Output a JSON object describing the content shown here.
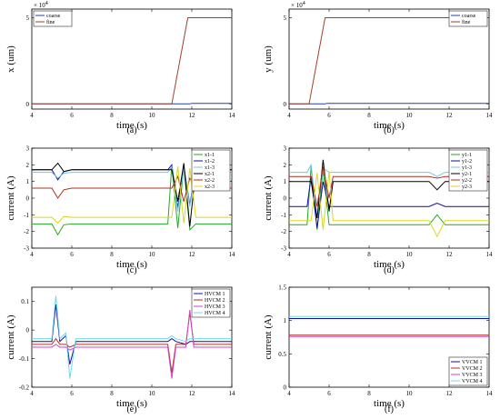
{
  "chart_data": [
    {
      "id": "a",
      "type": "line",
      "panel_label": "(a)",
      "xlabel": "time (s)",
      "ylabel": "x (um)",
      "xlim": [
        4,
        14
      ],
      "ylim": [
        -0.3,
        5.5
      ],
      "xticks": [
        "4",
        "6",
        "8",
        "10",
        "12",
        "14"
      ],
      "yticks": [
        {
          "v": 0,
          "t": "0"
        },
        {
          "v": 5,
          "t": "5"
        }
      ],
      "exponent_label": "× 10",
      "exponent_power": "4",
      "legend_position": "top-left",
      "series": [
        {
          "name": "coarse",
          "color": "#1f3fbf",
          "x": [
            4,
            11.9,
            12.0,
            14
          ],
          "y": [
            0,
            0,
            0.03,
            0.03
          ]
        },
        {
          "name": "fine",
          "color": "#a0402a",
          "x": [
            4,
            11.0,
            11.8,
            14
          ],
          "y": [
            0,
            0,
            5,
            5
          ]
        }
      ]
    },
    {
      "id": "b",
      "type": "line",
      "panel_label": "(b)",
      "xlabel": "time (s)",
      "ylabel": "y (um)",
      "xlim": [
        4,
        14
      ],
      "ylim": [
        -0.3,
        5.5
      ],
      "xticks": [
        "4",
        "6",
        "8",
        "10",
        "12",
        "14"
      ],
      "yticks": [
        {
          "v": 0,
          "t": "0"
        },
        {
          "v": 5,
          "t": "5"
        }
      ],
      "exponent_label": "× 10",
      "exponent_power": "4",
      "legend_position": "top-right",
      "series": [
        {
          "name": "coarse",
          "color": "#1f3fbf",
          "x": [
            4,
            5.8,
            5.9,
            14
          ],
          "y": [
            0,
            0,
            0.03,
            0.03
          ]
        },
        {
          "name": "fine",
          "color": "#a0402a",
          "x": [
            4,
            5.0,
            5.8,
            14
          ],
          "y": [
            0,
            0,
            5,
            5
          ]
        }
      ]
    },
    {
      "id": "c",
      "type": "line",
      "panel_label": "(c)",
      "xlabel": "time (s)",
      "ylabel": "current (A)",
      "xlim": [
        4,
        14
      ],
      "ylim": [
        -3,
        3
      ],
      "xticks": [
        "4",
        "6",
        "8",
        "10",
        "12",
        "14"
      ],
      "yticks": [
        {
          "v": -3,
          "t": "-3"
        },
        {
          "v": -2,
          "t": "-2"
        },
        {
          "v": -1,
          "t": "-1"
        },
        {
          "v": 0,
          "t": "0"
        },
        {
          "v": 1,
          "t": "1"
        },
        {
          "v": 2,
          "t": "2"
        },
        {
          "v": 3,
          "t": "3"
        }
      ],
      "legend_position": "top-right",
      "series": [
        {
          "name": "x1-1",
          "color": "#22aa22",
          "x": [
            4,
            5.0,
            5.3,
            5.6,
            6,
            10.8,
            11.0,
            11.3,
            11.6,
            11.9,
            12.2,
            14
          ],
          "y": [
            -1.55,
            -1.55,
            -2.2,
            -1.6,
            -1.55,
            -1.55,
            2.0,
            -1.8,
            1.9,
            -1.9,
            -1.55,
            -1.55
          ]
        },
        {
          "name": "x1-2",
          "color": "#1010a0",
          "x": [
            4,
            5.0,
            5.3,
            5.6,
            6,
            10.8,
            11.0,
            11.3,
            11.6,
            11.9,
            12.2,
            14
          ],
          "y": [
            1.7,
            1.7,
            1.1,
            1.6,
            1.7,
            1.7,
            2.0,
            -0.6,
            1.9,
            -0.4,
            1.7,
            1.7
          ]
        },
        {
          "name": "x1-3",
          "color": "#70c8e0",
          "x": [
            4,
            5.0,
            5.3,
            5.6,
            6,
            10.8,
            11.0,
            11.3,
            11.6,
            11.9,
            12.2,
            14
          ],
          "y": [
            1.55,
            1.55,
            1.2,
            1.5,
            1.55,
            1.55,
            1.9,
            -0.8,
            1.8,
            -0.5,
            1.55,
            1.55
          ]
        },
        {
          "name": "x2-1",
          "color": "#000000",
          "x": [
            4,
            5.0,
            5.3,
            5.6,
            6,
            11.0,
            11.3,
            11.6,
            11.9,
            12.2,
            14
          ],
          "y": [
            1.7,
            1.7,
            2.1,
            1.6,
            1.7,
            1.7,
            -0.2,
            2.1,
            -1.7,
            1.7,
            1.7
          ]
        },
        {
          "name": "x2-2",
          "color": "#b03020",
          "x": [
            4,
            5.0,
            5.3,
            5.6,
            6,
            11.0,
            11.3,
            11.6,
            11.9,
            12.2,
            14
          ],
          "y": [
            0.6,
            0.6,
            0.0,
            0.5,
            0.6,
            0.6,
            1.3,
            -0.2,
            1.2,
            0.6,
            0.6
          ]
        },
        {
          "name": "x2-3",
          "color": "#d8d820",
          "x": [
            4,
            5.0,
            5.3,
            5.6,
            6,
            11.0,
            11.3,
            11.6,
            11.9,
            12.2,
            14
          ],
          "y": [
            -1.15,
            -1.15,
            -1.5,
            -1.1,
            -1.15,
            -1.15,
            1.9,
            -1.5,
            1.8,
            -1.15,
            -1.15
          ]
        }
      ]
    },
    {
      "id": "d",
      "type": "line",
      "panel_label": "(d)",
      "xlabel": "time (s)",
      "ylabel": "current (A)",
      "xlim": [
        4,
        14
      ],
      "ylim": [
        -3,
        3
      ],
      "xticks": [
        "4",
        "6",
        "8",
        "10",
        "12",
        "14"
      ],
      "yticks": [
        {
          "v": -3,
          "t": "-3"
        },
        {
          "v": -2,
          "t": "-2"
        },
        {
          "v": -1,
          "t": "-1"
        },
        {
          "v": 0,
          "t": "0"
        },
        {
          "v": 1,
          "t": "1"
        },
        {
          "v": 2,
          "t": "2"
        },
        {
          "v": 3,
          "t": "3"
        }
      ],
      "legend_position": "top-right",
      "series": [
        {
          "name": "y1-1",
          "color": "#22aa22",
          "x": [
            4,
            4.9,
            5.1,
            5.4,
            5.7,
            6.0,
            11.0,
            11.4,
            11.8,
            14
          ],
          "y": [
            -1.6,
            -1.6,
            1.9,
            -1.9,
            1.7,
            -1.6,
            -1.6,
            -1.0,
            -1.6,
            -1.6
          ]
        },
        {
          "name": "y1-2",
          "color": "#1010a0",
          "x": [
            4,
            4.9,
            5.1,
            5.4,
            5.7,
            6.0,
            11.0,
            11.4,
            11.8,
            14
          ],
          "y": [
            -0.5,
            -0.5,
            1.3,
            -1.8,
            1.0,
            -0.5,
            -0.5,
            -0.3,
            -0.5,
            -0.5
          ]
        },
        {
          "name": "y1-3",
          "color": "#70c8e0",
          "x": [
            4,
            4.9,
            5.1,
            5.4,
            5.7,
            6.0,
            11.0,
            11.4,
            11.8,
            14
          ],
          "y": [
            1.55,
            1.55,
            2.0,
            -1.2,
            1.8,
            1.55,
            1.55,
            1.3,
            1.55,
            1.55
          ]
        },
        {
          "name": "y2-1",
          "color": "#000000",
          "x": [
            4,
            5.1,
            5.4,
            5.7,
            6.0,
            6.2,
            11.0,
            11.4,
            11.8,
            14
          ],
          "y": [
            1.0,
            1.0,
            -1.2,
            2.3,
            -0.8,
            1.0,
            1.0,
            0.5,
            1.0,
            1.0
          ]
        },
        {
          "name": "y2-2",
          "color": "#b03020",
          "x": [
            4,
            5.1,
            5.4,
            5.7,
            6.0,
            6.2,
            11.0,
            11.4,
            11.8,
            14
          ],
          "y": [
            1.3,
            1.3,
            -0.5,
            1.9,
            0.0,
            1.3,
            1.3,
            1.2,
            1.3,
            1.3
          ]
        },
        {
          "name": "y2-3",
          "color": "#d8d820",
          "x": [
            4,
            5.1,
            5.4,
            5.7,
            6.0,
            6.2,
            11.0,
            11.4,
            11.8,
            14
          ],
          "y": [
            -1.35,
            -1.35,
            1.5,
            -1.9,
            1.6,
            -1.35,
            -1.35,
            -2.3,
            -1.35,
            -1.35
          ]
        }
      ]
    },
    {
      "id": "e",
      "type": "line",
      "panel_label": "(e)",
      "xlabel": "time (s)",
      "ylabel": "current (A)",
      "xlim": [
        4,
        14
      ],
      "ylim": [
        -0.2,
        0.15
      ],
      "xticks": [
        "4",
        "6",
        "8",
        "10",
        "12",
        "14"
      ],
      "yticks": [
        {
          "v": -0.2,
          "t": "-0.2"
        },
        {
          "v": -0.1,
          "t": "-0.1"
        },
        {
          "v": 0,
          "t": "0"
        },
        {
          "v": 0.1,
          "t": "0.1"
        }
      ],
      "legend_position": "top-right",
      "series": [
        {
          "name": "HVCM 1",
          "color": "#1010a0",
          "x": [
            4,
            5.0,
            5.2,
            5.4,
            5.7,
            5.9,
            6.2,
            10.8,
            11.0,
            11.2,
            11.7,
            11.9,
            12.1,
            14
          ],
          "y": [
            -0.04,
            -0.04,
            0.09,
            -0.04,
            -0.02,
            -0.12,
            -0.04,
            -0.04,
            -0.03,
            -0.04,
            -0.05,
            -0.04,
            -0.04,
            -0.04
          ]
        },
        {
          "name": "HVCM 2",
          "color": "#b03020",
          "x": [
            4,
            5.0,
            5.2,
            5.4,
            5.7,
            5.9,
            6.2,
            10.8,
            11.0,
            11.2,
            11.7,
            11.9,
            12.1,
            14
          ],
          "y": [
            -0.05,
            -0.05,
            -0.03,
            -0.05,
            -0.05,
            -0.06,
            -0.05,
            -0.05,
            -0.15,
            -0.05,
            -0.05,
            0.06,
            -0.05,
            -0.05
          ]
        },
        {
          "name": "HVCM 3",
          "color": "#cc44cc",
          "x": [
            4,
            5.0,
            5.2,
            5.4,
            5.7,
            5.9,
            6.2,
            10.8,
            11.0,
            11.2,
            11.7,
            11.9,
            12.1,
            14
          ],
          "y": [
            -0.06,
            -0.06,
            -0.05,
            -0.06,
            -0.06,
            -0.07,
            -0.06,
            -0.06,
            -0.17,
            -0.06,
            -0.06,
            0.07,
            -0.06,
            -0.06
          ]
        },
        {
          "name": "HVCM 4",
          "color": "#70d8f0",
          "x": [
            4,
            5.0,
            5.2,
            5.4,
            5.7,
            5.9,
            6.2,
            10.8,
            11.0,
            11.2,
            11.7,
            11.9,
            12.1,
            14
          ],
          "y": [
            -0.03,
            -0.03,
            0.12,
            -0.03,
            -0.01,
            -0.17,
            -0.03,
            -0.03,
            -0.02,
            -0.03,
            -0.04,
            -0.03,
            -0.03,
            -0.03
          ]
        }
      ]
    },
    {
      "id": "f",
      "type": "line",
      "panel_label": "(f)",
      "xlabel": "time (s)",
      "ylabel": "current (A)",
      "xlim": [
        4,
        14
      ],
      "ylim": [
        0,
        1.5
      ],
      "xticks": [
        "4",
        "6",
        "8",
        "10",
        "12",
        "14"
      ],
      "yticks": [
        {
          "v": 0,
          "t": "0"
        },
        {
          "v": 0.5,
          "t": "0.5"
        },
        {
          "v": 1,
          "t": "1"
        },
        {
          "v": 1.5,
          "t": "1.5"
        }
      ],
      "legend_position": "bottom-right",
      "series": [
        {
          "name": "VVCM 1",
          "color": "#1010a0",
          "x": [
            4,
            14
          ],
          "y": [
            1.03,
            1.03
          ]
        },
        {
          "name": "VVCM 2",
          "color": "#b03020",
          "x": [
            4,
            14
          ],
          "y": [
            0.78,
            0.78
          ]
        },
        {
          "name": "VVCM 3",
          "color": "#cc44cc",
          "x": [
            4,
            14
          ],
          "y": [
            0.76,
            0.76
          ]
        },
        {
          "name": "VVCM 4",
          "color": "#70d8f0",
          "x": [
            4,
            14
          ],
          "y": [
            1.06,
            1.06
          ]
        }
      ]
    }
  ]
}
